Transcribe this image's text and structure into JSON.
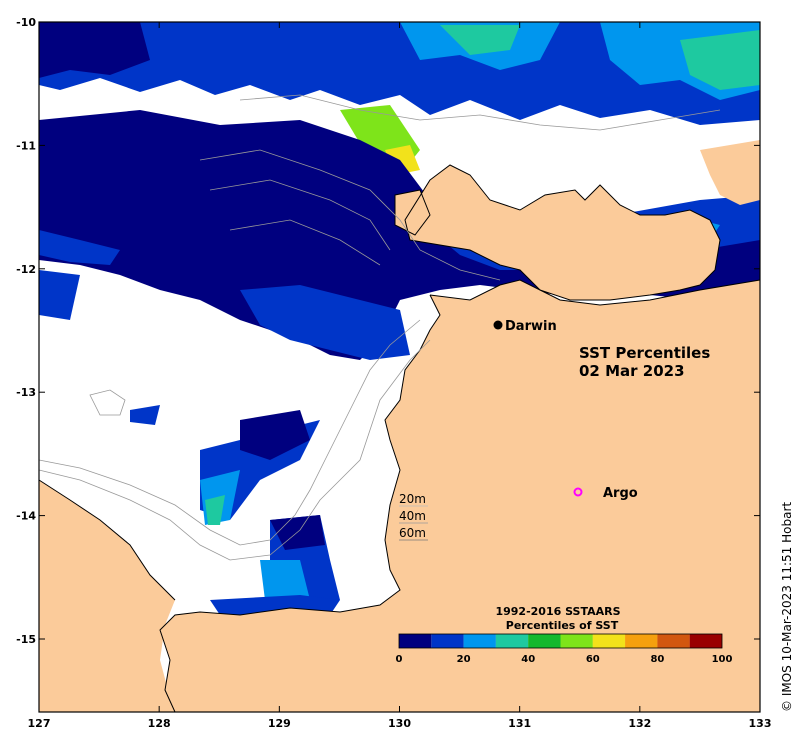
{
  "map": {
    "title_line1": "SST Percentiles",
    "title_line2": "02 Mar 2023",
    "x_ticks": [
      "127",
      "128",
      "129",
      "130",
      "131",
      "132",
      "133"
    ],
    "y_ticks": [
      "-10",
      "-11",
      "-12",
      "-13",
      "-14",
      "-15"
    ],
    "places": {
      "darwin": "Darwin",
      "argo": "Argo"
    },
    "contours": {
      "c1": "20m",
      "c2": "40m",
      "c3": "60m"
    },
    "colors": {
      "land": "#fbcb9a",
      "ocean_nodata": "#ffffff",
      "argo_marker": "#ff00ff"
    }
  },
  "legend": {
    "title_line1": "1992-2016 SSTAARS",
    "title_line2": "Percentiles of SST",
    "tick_labels": [
      "0",
      "20",
      "40",
      "60",
      "80",
      "100"
    ],
    "colors": [
      "#00007f",
      "#0035c8",
      "#0096ee",
      "#1ec9a0",
      "#13b82d",
      "#7ee41a",
      "#f2e21b",
      "#f5a00e",
      "#d2570f",
      "#990000"
    ]
  },
  "copyright": "© IMOS 10-Mar-2023 11:51 Hobart"
}
